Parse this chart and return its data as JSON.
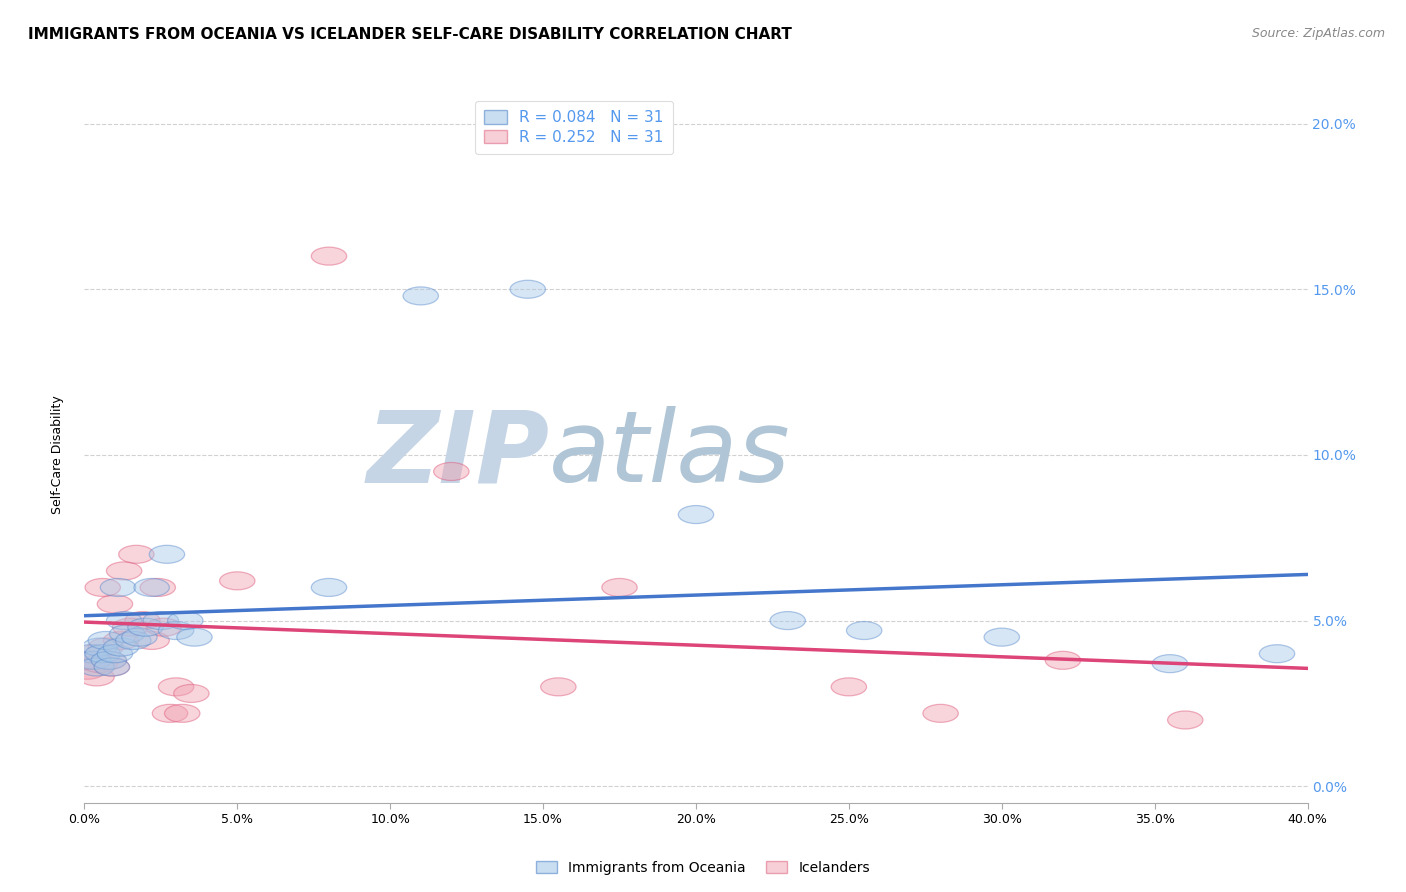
{
  "title": "IMMIGRANTS FROM OCEANIA VS ICELANDER SELF-CARE DISABILITY CORRELATION CHART",
  "source": "Source: ZipAtlas.com",
  "ylabel": "Self-Care Disability",
  "xlabel": "",
  "xmin": 0.0,
  "xmax": 0.4,
  "ymin": -0.005,
  "ymax": 0.205,
  "r_blue": 0.084,
  "n_blue": 31,
  "r_pink": 0.252,
  "n_pink": 31,
  "blue_scatter_x": [
    0.002,
    0.003,
    0.004,
    0.005,
    0.006,
    0.007,
    0.008,
    0.009,
    0.01,
    0.011,
    0.012,
    0.013,
    0.014,
    0.016,
    0.018,
    0.02,
    0.022,
    0.025,
    0.027,
    0.03,
    0.033,
    0.036,
    0.08,
    0.11,
    0.145,
    0.2,
    0.23,
    0.255,
    0.3,
    0.355,
    0.39
  ],
  "blue_scatter_y": [
    0.04,
    0.038,
    0.036,
    0.042,
    0.04,
    0.044,
    0.038,
    0.036,
    0.04,
    0.06,
    0.042,
    0.05,
    0.046,
    0.044,
    0.045,
    0.048,
    0.06,
    0.05,
    0.07,
    0.047,
    0.05,
    0.045,
    0.06,
    0.148,
    0.15,
    0.082,
    0.05,
    0.047,
    0.045,
    0.037,
    0.04
  ],
  "pink_scatter_x": [
    0.001,
    0.002,
    0.003,
    0.004,
    0.005,
    0.006,
    0.007,
    0.008,
    0.009,
    0.01,
    0.012,
    0.013,
    0.015,
    0.017,
    0.019,
    0.022,
    0.024,
    0.026,
    0.028,
    0.03,
    0.032,
    0.035,
    0.05,
    0.08,
    0.12,
    0.155,
    0.175,
    0.25,
    0.28,
    0.32,
    0.36
  ],
  "pink_scatter_y": [
    0.035,
    0.038,
    0.04,
    0.033,
    0.037,
    0.06,
    0.042,
    0.038,
    0.036,
    0.055,
    0.044,
    0.065,
    0.048,
    0.07,
    0.05,
    0.044,
    0.06,
    0.048,
    0.022,
    0.03,
    0.022,
    0.028,
    0.062,
    0.16,
    0.095,
    0.03,
    0.06,
    0.03,
    0.022,
    0.038,
    0.02
  ],
  "blue_color": "#a8c8e8",
  "pink_color": "#f0a0b0",
  "blue_edge_color": "#5588cc",
  "pink_edge_color": "#dd5577",
  "blue_line_color": "#4477cc",
  "pink_line_color": "#dd4477",
  "watermark_zip_color": "#c8d8e8",
  "watermark_atlas_color": "#b8ccd8",
  "background_color": "#ffffff",
  "grid_color": "#cccccc",
  "ytick_right_color": "#5599ee",
  "title_fontsize": 11,
  "axis_label_fontsize": 9,
  "legend_fontsize": 11,
  "source_fontsize": 9,
  "marker_size": 180,
  "line_width": 2.5
}
